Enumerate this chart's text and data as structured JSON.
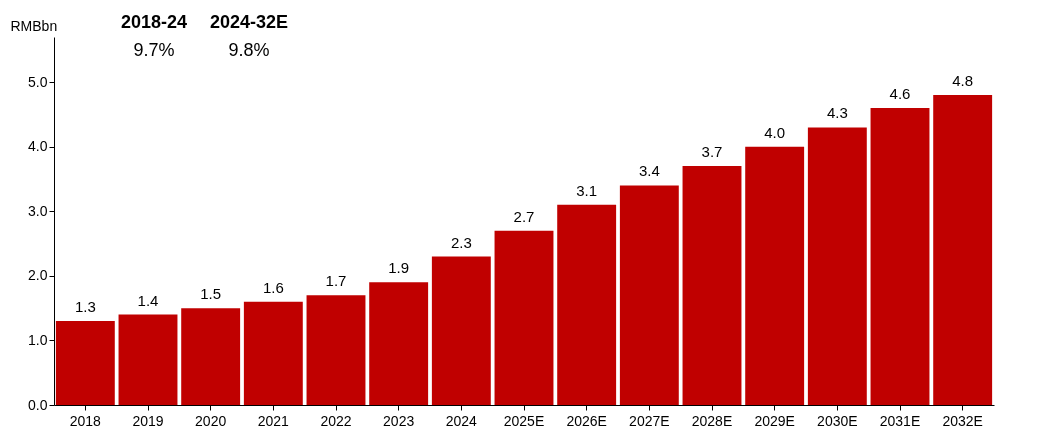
{
  "chart_data": {
    "type": "bar",
    "ylabel": "RMBbn",
    "categories": [
      "2018",
      "2019",
      "2020",
      "2021",
      "2022",
      "2023",
      "2024",
      "2025E",
      "2026E",
      "2027E",
      "2028E",
      "2029E",
      "2030E",
      "2031E",
      "2032E"
    ],
    "values": [
      1.3,
      1.4,
      1.5,
      1.6,
      1.7,
      1.9,
      2.3,
      2.7,
      3.1,
      3.4,
      3.7,
      4.0,
      4.3,
      4.6,
      4.8
    ],
    "color": "#c00000",
    "grid": false,
    "value_labels": [
      "1.3",
      "1.4",
      "1.5",
      "1.6",
      "1.7",
      "1.9",
      "2.3",
      "2.7",
      "3.1",
      "3.4",
      "3.7",
      "4.0",
      "4.3",
      "4.6",
      "4.8"
    ],
    "ylim": [
      0,
      5.7
    ],
    "yticks": [
      {
        "value": 0,
        "label": "0.0"
      },
      {
        "value": 1,
        "label": "1.0"
      },
      {
        "value": 2,
        "label": "2.0"
      },
      {
        "value": 3,
        "label": "3.0"
      },
      {
        "value": 4,
        "label": "4.0"
      },
      {
        "value": 5,
        "label": "5.0"
      }
    ],
    "annotations": [
      "2018-24",
      "2024-32E",
      "9.7%",
      "9.8%"
    ]
  }
}
